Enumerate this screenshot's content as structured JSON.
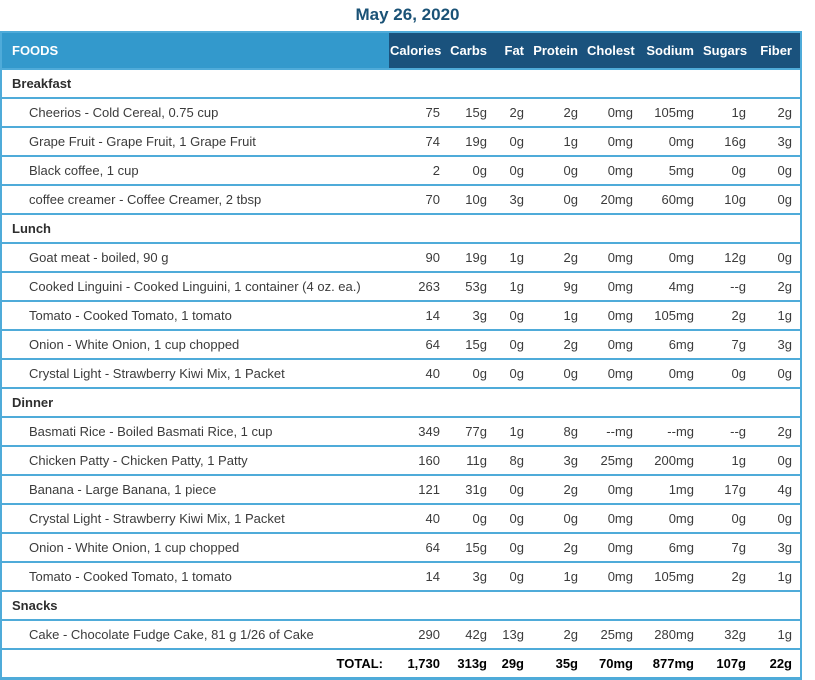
{
  "title": "May 26, 2020",
  "colors": {
    "title_text": "#1a5276",
    "foods_header_bg": "#3399cc",
    "columns_header_bg": "#1a527d",
    "header_text": "#ffffff",
    "border": "#4fabd9",
    "body_text": "#3b3b3b"
  },
  "table": {
    "foods_header": "FOODS",
    "columns": [
      "Calories",
      "Carbs",
      "Fat",
      "Protein",
      "Cholest",
      "Sodium",
      "Sugars",
      "Fiber"
    ],
    "sections": [
      {
        "name": "Breakfast",
        "rows": [
          {
            "food": "Cheerios - Cold Cereal, 0.75 cup",
            "values": [
              "75",
              "15g",
              "2g",
              "2g",
              "0mg",
              "105mg",
              "1g",
              "2g"
            ]
          },
          {
            "food": "Grape Fruit - Grape Fruit, 1 Grape Fruit",
            "values": [
              "74",
              "19g",
              "0g",
              "1g",
              "0mg",
              "0mg",
              "16g",
              "3g"
            ]
          },
          {
            "food": "Black coffee, 1 cup",
            "values": [
              "2",
              "0g",
              "0g",
              "0g",
              "0mg",
              "5mg",
              "0g",
              "0g"
            ]
          },
          {
            "food": "coffee creamer - Coffee Creamer, 2 tbsp",
            "values": [
              "70",
              "10g",
              "3g",
              "0g",
              "20mg",
              "60mg",
              "10g",
              "0g"
            ]
          }
        ]
      },
      {
        "name": "Lunch",
        "rows": [
          {
            "food": "Goat meat - boiled, 90 g",
            "values": [
              "90",
              "19g",
              "1g",
              "2g",
              "0mg",
              "0mg",
              "12g",
              "0g"
            ]
          },
          {
            "food": "Cooked Linguini - Cooked Linguini, 1 container (4 oz. ea.)",
            "values": [
              "263",
              "53g",
              "1g",
              "9g",
              "0mg",
              "4mg",
              "--g",
              "2g"
            ]
          },
          {
            "food": "Tomato - Cooked Tomato, 1 tomato",
            "values": [
              "14",
              "3g",
              "0g",
              "1g",
              "0mg",
              "105mg",
              "2g",
              "1g"
            ]
          },
          {
            "food": "Onion - White Onion, 1 cup chopped",
            "values": [
              "64",
              "15g",
              "0g",
              "2g",
              "0mg",
              "6mg",
              "7g",
              "3g"
            ]
          },
          {
            "food": "Crystal Light - Strawberry Kiwi Mix, 1 Packet",
            "values": [
              "40",
              "0g",
              "0g",
              "0g",
              "0mg",
              "0mg",
              "0g",
              "0g"
            ]
          }
        ]
      },
      {
        "name": "Dinner",
        "rows": [
          {
            "food": "Basmati Rice - Boiled Basmati Rice, 1 cup",
            "values": [
              "349",
              "77g",
              "1g",
              "8g",
              "--mg",
              "--mg",
              "--g",
              "2g"
            ]
          },
          {
            "food": "Chicken Patty - Chicken Patty, 1 Patty",
            "values": [
              "160",
              "11g",
              "8g",
              "3g",
              "25mg",
              "200mg",
              "1g",
              "0g"
            ]
          },
          {
            "food": "Banana - Large Banana, 1 piece",
            "values": [
              "121",
              "31g",
              "0g",
              "2g",
              "0mg",
              "1mg",
              "17g",
              "4g"
            ]
          },
          {
            "food": "Crystal Light - Strawberry Kiwi Mix, 1 Packet",
            "values": [
              "40",
              "0g",
              "0g",
              "0g",
              "0mg",
              "0mg",
              "0g",
              "0g"
            ]
          },
          {
            "food": "Onion - White Onion, 1 cup chopped",
            "values": [
              "64",
              "15g",
              "0g",
              "2g",
              "0mg",
              "6mg",
              "7g",
              "3g"
            ]
          },
          {
            "food": "Tomato - Cooked Tomato, 1 tomato",
            "values": [
              "14",
              "3g",
              "0g",
              "1g",
              "0mg",
              "105mg",
              "2g",
              "1g"
            ]
          }
        ]
      },
      {
        "name": "Snacks",
        "rows": [
          {
            "food": "Cake - Chocolate Fudge Cake, 81 g 1/26 of Cake",
            "values": [
              "290",
              "42g",
              "13g",
              "2g",
              "25mg",
              "280mg",
              "32g",
              "1g"
            ]
          }
        ]
      }
    ],
    "total": {
      "label": "TOTAL:",
      "values": [
        "1,730",
        "313g",
        "29g",
        "35g",
        "70mg",
        "877mg",
        "107g",
        "22g"
      ]
    }
  }
}
